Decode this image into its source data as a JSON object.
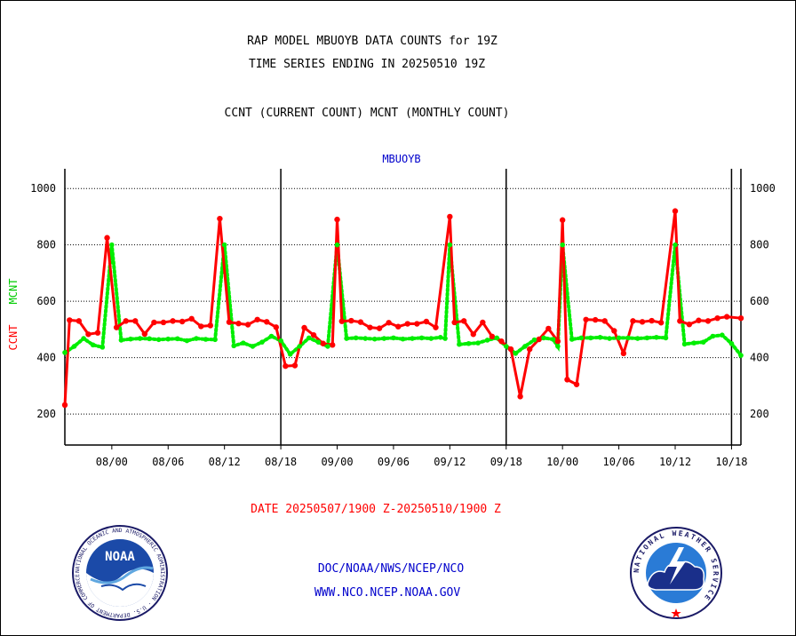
{
  "header": {
    "title_line1": "RAP MODEL MBUOYB DATA COUNTS for 19Z",
    "title_line2": "TIME SERIES ENDING IN 20250510 19Z",
    "subtitle": "CCNT (CURRENT COUNT) MCNT (MONTHLY COUNT)"
  },
  "footer": {
    "date_range": "DATE 20250507/1900 Z-20250510/1900 Z",
    "org_line": "DOC/NOAA/NWS/NCEP/NCO",
    "url_line": "WWW.NCO.NCEP.NOAA.GOV",
    "noaa_logo_text": "NOAA",
    "noaa_ring_text": "NATIONAL OCEANIC AND ATMOSPHERIC ADMINISTRATION · U.S. DEPARTMENT OF COMMERCE",
    "nws_ring_text": "NATIONAL WEATHER SERVICE"
  },
  "colors": {
    "ccnt": "#ff0000",
    "mcnt": "#00ee00",
    "title": "#000000",
    "blue_text": "#0000cc",
    "date_text": "#ff0000"
  },
  "chart_data": {
    "type": "line",
    "title": "MBUOYB",
    "ylabel_left": "CCNT",
    "ylabel_right": "MCNT",
    "ylim": [
      90,
      1070
    ],
    "yticks": [
      200,
      400,
      600,
      800,
      1000
    ],
    "grid": true,
    "x_tick_labels": [
      "08/00",
      "08/06",
      "08/12",
      "08/18",
      "09/00",
      "09/06",
      "09/12",
      "09/18",
      "10/00",
      "10/06",
      "10/12",
      "10/18"
    ],
    "x_tick_hours": [
      5,
      11,
      17,
      23,
      29,
      35,
      41,
      47,
      53,
      59,
      65,
      71
    ],
    "day_boundaries_hours": [
      23,
      47,
      71
    ],
    "x_range_hours": [
      0,
      72
    ],
    "series": [
      {
        "name": "CCNT",
        "values": [
          232,
          533,
          530,
          483,
          488,
          825,
          507,
          530,
          530,
          484,
          525,
          525,
          530,
          528,
          538,
          511,
          514,
          893,
          526,
          521,
          517,
          535,
          527,
          508,
          370,
          372,
          506,
          480,
          450,
          445,
          890,
          529,
          531,
          526,
          507,
          504,
          524,
          510,
          520,
          520,
          528,
          507,
          900,
          525,
          530,
          483,
          525,
          475,
          458,
          430,
          262,
          430,
          465,
          503,
          458,
          888,
          322,
          305,
          535,
          534,
          530,
          495,
          415,
          530,
          527,
          531,
          524,
          920,
          530,
          518,
          532,
          530,
          540,
          545,
          540
        ],
        "x_hours": [
          0,
          0.5,
          1.5,
          2.5,
          3.5,
          4.5,
          5.5,
          6.5,
          7.5,
          8.5,
          9.5,
          10.5,
          11.5,
          12.5,
          13.5,
          14.5,
          15.5,
          16.5,
          17.5,
          18.5,
          19.5,
          20.5,
          21.5,
          22.5,
          23.5,
          24.5,
          25.5,
          26.5,
          27.5,
          28.5,
          29.0,
          29.5,
          30.5,
          31.5,
          32.5,
          33.5,
          34.5,
          35.5,
          36.5,
          37.5,
          38.5,
          39.5,
          41.0,
          41.5,
          42.5,
          43.5,
          44.5,
          45.5,
          46.5,
          47.5,
          48.5,
          49.5,
          50.5,
          51.5,
          52.5,
          53.0,
          53.5,
          54.5,
          55.5,
          56.5,
          57.5,
          58.5,
          59.5,
          60.5,
          61.5,
          62.5,
          63.5,
          65.0,
          65.5,
          66.5,
          67.5,
          68.5,
          69.5,
          70.5,
          72.0
        ]
      },
      {
        "name": "MCNT",
        "values": [
          418,
          440,
          468,
          445,
          437,
          800,
          462,
          466,
          468,
          467,
          464,
          466,
          467,
          460,
          468,
          465,
          464,
          800,
          442,
          452,
          440,
          455,
          476,
          460,
          412,
          440,
          470,
          455,
          440,
          800,
          468,
          470,
          468,
          466,
          468,
          470,
          466,
          468,
          470,
          468,
          472,
          468,
          800,
          447,
          450,
          452,
          462,
          470,
          440,
          415,
          440,
          463,
          470,
          465,
          440,
          800,
          465,
          470,
          470,
          472,
          468,
          470,
          470,
          468,
          470,
          472,
          470,
          800,
          448,
          452,
          455,
          476,
          480,
          450,
          408
        ],
        "x_hours": [
          0,
          1,
          2,
          3,
          4,
          5,
          6,
          7,
          8,
          9,
          10,
          11,
          12,
          13,
          14,
          15,
          16,
          17,
          18,
          19,
          20,
          21,
          22,
          23,
          24,
          25,
          26,
          27,
          28,
          29,
          30,
          31,
          32,
          33,
          34,
          35,
          36,
          37,
          38,
          39,
          40,
          40.5,
          41,
          42,
          43,
          44,
          45,
          46,
          47,
          48,
          49,
          50,
          51,
          52,
          52.5,
          53,
          54,
          55,
          56,
          57,
          58,
          59,
          60,
          61,
          62,
          63,
          64,
          65,
          66,
          67,
          68,
          69,
          70,
          71,
          72
        ]
      }
    ]
  }
}
